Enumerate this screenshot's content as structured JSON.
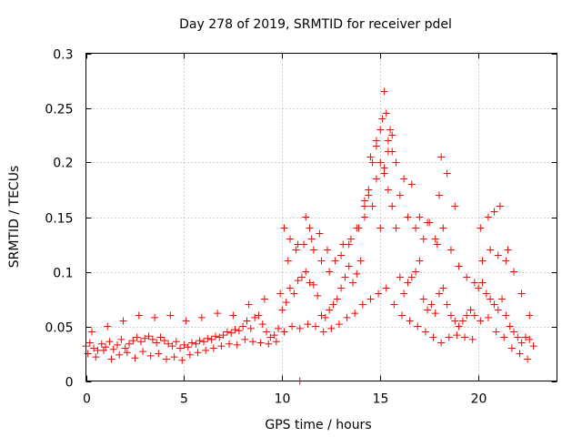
{
  "chart_data": {
    "type": "scatter",
    "title": "Day 278 of 2019, SRMTID for receiver pdel",
    "xlabel": "GPS time / hours",
    "ylabel": "SRMTID / TECUs",
    "xlim": [
      0,
      24
    ],
    "ylim": [
      0,
      0.3
    ],
    "x_ticks": [
      0,
      5,
      10,
      15,
      20
    ],
    "x_tick_labels": [
      "0",
      "5",
      "10",
      "15",
      "20"
    ],
    "y_ticks": [
      0,
      0.05,
      0.1,
      0.15,
      0.2,
      0.25,
      0.3
    ],
    "y_tick_labels": [
      "0",
      "0.05",
      "0.1",
      "0.15",
      "0.2",
      "0.25",
      "0.3"
    ],
    "grid": true,
    "marker": "+",
    "color": "#ff0000",
    "series": [
      {
        "name": "SRMTID",
        "x": [
          0.0,
          0.2,
          0.4,
          0.6,
          0.8,
          1.0,
          1.2,
          1.4,
          1.6,
          1.8,
          2.0,
          2.2,
          2.4,
          2.6,
          2.8,
          3.0,
          3.2,
          3.4,
          3.6,
          3.8,
          4.0,
          4.2,
          4.4,
          4.6,
          4.8,
          5.0,
          5.2,
          5.4,
          5.6,
          5.8,
          6.0,
          6.2,
          6.4,
          6.6,
          6.8,
          7.0,
          7.2,
          7.4,
          7.6,
          7.8,
          8.0,
          8.2,
          8.4,
          8.6,
          8.8,
          9.0,
          9.2,
          9.4,
          9.6,
          9.8,
          10.0,
          10.2,
          10.4,
          10.6,
          10.8,
          11.0,
          11.2,
          11.4,
          11.6,
          11.8,
          12.0,
          12.2,
          12.4,
          12.6,
          12.8,
          13.0,
          13.2,
          13.4,
          13.6,
          13.8,
          14.0,
          14.2,
          14.4,
          14.6,
          14.8,
          15.0,
          15.2,
          15.4,
          15.6,
          15.8,
          16.0,
          16.2,
          16.4,
          16.6,
          16.8,
          17.0,
          17.2,
          17.4,
          17.6,
          17.8,
          18.0,
          18.2,
          18.4,
          18.6,
          18.8,
          19.0,
          19.2,
          19.4,
          19.6,
          19.8,
          20.0,
          20.2,
          20.4,
          20.6,
          20.8,
          21.0,
          21.2,
          21.4,
          21.6,
          21.8,
          22.0,
          22.2,
          22.4,
          22.6,
          22.8,
          0.1,
          0.5,
          0.9,
          1.3,
          1.7,
          2.1,
          2.5,
          2.9,
          3.3,
          3.7,
          4.1,
          4.5,
          4.9,
          5.3,
          5.7,
          6.1,
          6.5,
          6.9,
          7.3,
          7.7,
          8.1,
          8.5,
          8.9,
          9.3,
          9.7,
          10.1,
          10.5,
          10.9,
          11.3,
          11.7,
          12.1,
          12.5,
          12.9,
          13.3,
          13.7,
          14.1,
          14.5,
          14.9,
          15.3,
          15.7,
          16.1,
          16.5,
          16.9,
          17.3,
          17.7,
          18.1,
          18.5,
          18.9,
          19.3,
          19.7,
          20.1,
          20.5,
          20.9,
          21.3,
          21.7,
          22.1,
          22.5,
          0.3,
          1.1,
          1.9,
          2.7,
          3.5,
          4.3,
          5.1,
          5.9,
          6.7,
          7.5,
          8.3,
          9.1,
          9.9,
          10.3,
          10.7,
          11.1,
          11.5,
          11.9,
          12.3,
          12.7,
          13.1,
          13.5,
          13.9,
          14.2,
          14.4,
          14.6,
          14.8,
          15.0,
          15.1,
          15.2,
          15.3,
          15.4,
          15.5,
          15.6,
          15.8,
          16.2,
          16.6,
          17.0,
          17.4,
          17.8,
          18.0,
          18.2,
          18.6,
          19.0,
          19.4,
          19.8,
          20.2,
          20.6,
          21.0,
          21.4,
          21.8,
          22.2,
          22.6,
          10.1,
          10.4,
          10.8,
          11.2,
          11.4,
          11.6,
          12.0,
          12.4,
          13.0,
          13.4,
          13.8,
          14.2,
          14.5,
          14.8,
          15.0,
          15.2,
          15.4,
          15.6,
          16.0,
          16.4,
          16.8,
          17.2,
          17.5,
          17.9,
          18.1,
          18.4,
          18.8,
          20.1,
          20.5,
          20.8,
          21.1,
          21.5,
          10.9
        ],
        "y": [
          0.032,
          0.035,
          0.03,
          0.028,
          0.034,
          0.031,
          0.036,
          0.029,
          0.033,
          0.038,
          0.03,
          0.034,
          0.037,
          0.04,
          0.036,
          0.039,
          0.041,
          0.038,
          0.035,
          0.04,
          0.037,
          0.034,
          0.032,
          0.036,
          0.03,
          0.033,
          0.031,
          0.035,
          0.034,
          0.037,
          0.036,
          0.039,
          0.038,
          0.041,
          0.04,
          0.042,
          0.045,
          0.044,
          0.047,
          0.046,
          0.05,
          0.055,
          0.048,
          0.058,
          0.06,
          0.052,
          0.045,
          0.04,
          0.042,
          0.048,
          0.065,
          0.072,
          0.085,
          0.08,
          0.092,
          0.095,
          0.1,
          0.09,
          0.088,
          0.078,
          0.06,
          0.058,
          0.065,
          0.07,
          0.075,
          0.085,
          0.095,
          0.105,
          0.09,
          0.098,
          0.11,
          0.15,
          0.17,
          0.16,
          0.185,
          0.14,
          0.19,
          0.175,
          0.16,
          0.14,
          0.095,
          0.08,
          0.09,
          0.095,
          0.1,
          0.11,
          0.075,
          0.065,
          0.07,
          0.062,
          0.08,
          0.085,
          0.07,
          0.06,
          0.055,
          0.05,
          0.055,
          0.06,
          0.065,
          0.06,
          0.085,
          0.09,
          0.08,
          0.075,
          0.07,
          0.065,
          0.075,
          0.06,
          0.05,
          0.045,
          0.04,
          0.035,
          0.04,
          0.038,
          0.032,
          0.025,
          0.022,
          0.028,
          0.02,
          0.024,
          0.026,
          0.021,
          0.027,
          0.023,
          0.025,
          0.02,
          0.022,
          0.019,
          0.024,
          0.026,
          0.028,
          0.03,
          0.032,
          0.034,
          0.033,
          0.038,
          0.036,
          0.035,
          0.034,
          0.036,
          0.045,
          0.05,
          0.048,
          0.052,
          0.05,
          0.045,
          0.048,
          0.052,
          0.058,
          0.062,
          0.07,
          0.075,
          0.08,
          0.085,
          0.07,
          0.06,
          0.055,
          0.05,
          0.045,
          0.04,
          0.035,
          0.04,
          0.042,
          0.04,
          0.038,
          0.055,
          0.058,
          0.045,
          0.04,
          0.03,
          0.025,
          0.02,
          0.045,
          0.05,
          0.055,
          0.06,
          0.058,
          0.06,
          0.055,
          0.058,
          0.062,
          0.06,
          0.07,
          0.075,
          0.08,
          0.11,
          0.12,
          0.125,
          0.13,
          0.135,
          0.12,
          0.11,
          0.125,
          0.13,
          0.14,
          0.16,
          0.175,
          0.2,
          0.22,
          0.23,
          0.24,
          0.265,
          0.245,
          0.22,
          0.23,
          0.21,
          0.2,
          0.185,
          0.18,
          0.15,
          0.145,
          0.13,
          0.17,
          0.14,
          0.12,
          0.105,
          0.095,
          0.09,
          0.11,
          0.12,
          0.115,
          0.11,
          0.1,
          0.08,
          0.06,
          0.14,
          0.13,
          0.125,
          0.15,
          0.14,
          0.12,
          0.11,
          0.1,
          0.115,
          0.125,
          0.14,
          0.165,
          0.205,
          0.215,
          0.2,
          0.195,
          0.21,
          0.225,
          0.17,
          0.15,
          0.14,
          0.13,
          0.145,
          0.125,
          0.205,
          0.19,
          0.16,
          0.14,
          0.15,
          0.155,
          0.16,
          0.12,
          0.0
        ],
        "marker_overrides": [
          {
            "index": 336,
            "marker": "square"
          }
        ]
      }
    ]
  }
}
